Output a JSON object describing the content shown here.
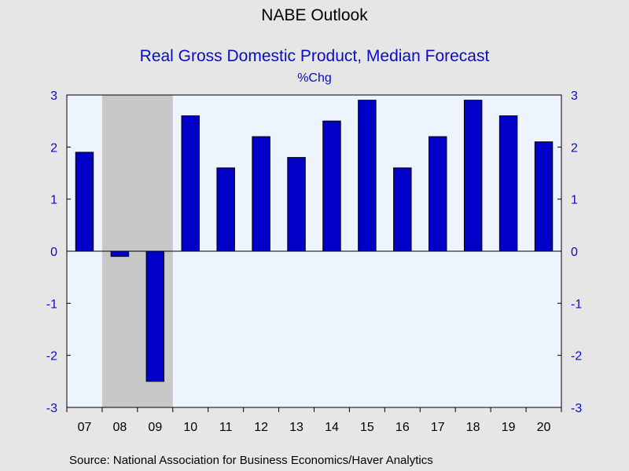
{
  "header": {
    "title": "NABE Outlook",
    "subtitle": "Real Gross Domestic Product, Median Forecast",
    "units": "%Chg"
  },
  "footer": {
    "source": "Source:  National Association for Business Economics/Haver Analytics"
  },
  "colors": {
    "page_background": "#e6e6e6",
    "plot_background": "#eef4fd",
    "bar_fill": "#0000c8",
    "bar_outline": "#000000",
    "recession_shading": "#c8c8c8",
    "axis_labels": "#0a0ac8"
  },
  "chart_data": {
    "type": "bar",
    "title": "NABE Outlook",
    "subtitle": "Real Gross Domestic Product, Median Forecast",
    "ylabel": "%Chg",
    "xlabel": "",
    "categories": [
      "07",
      "08",
      "09",
      "10",
      "11",
      "12",
      "13",
      "14",
      "15",
      "16",
      "17",
      "18",
      "19",
      "20"
    ],
    "values": [
      1.9,
      -0.1,
      -2.5,
      2.6,
      1.6,
      2.2,
      1.8,
      2.5,
      2.9,
      1.6,
      2.2,
      2.9,
      2.6,
      2.1
    ],
    "ylim": [
      -3,
      3
    ],
    "yticks": [
      3,
      2,
      1,
      0,
      -1,
      -2,
      -3
    ],
    "yaxis_sides": "left and right",
    "shaded_period": {
      "label": "recession",
      "from_category": "08",
      "to_category": "09"
    },
    "grid": false,
    "legend": "none"
  }
}
